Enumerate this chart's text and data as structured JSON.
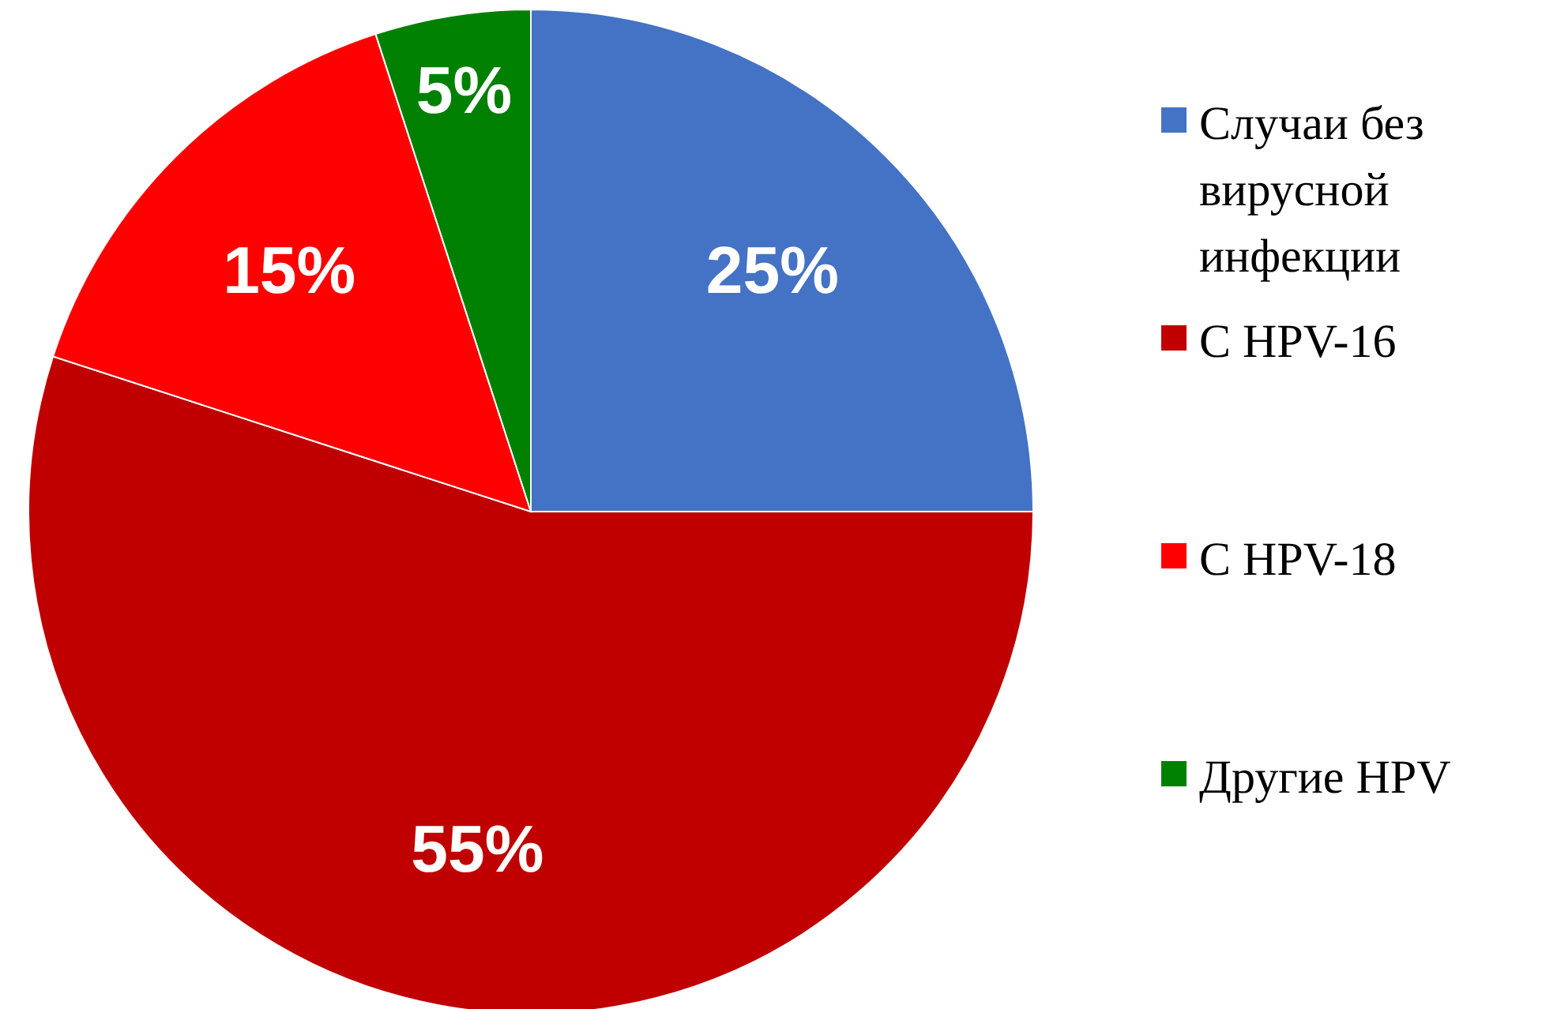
{
  "chart_data": {
    "type": "pie",
    "categories": [
      "Случаи без вирусной инфекции",
      "С HPV-16",
      "С HPV-18",
      "Другие HPV"
    ],
    "values": [
      25,
      55,
      15,
      5
    ],
    "colors": [
      "#4472c4",
      "#c00000",
      "#ff0000",
      "#008000"
    ],
    "value_labels": [
      "25%",
      "55%",
      "15%",
      "5%"
    ],
    "legend": "right"
  }
}
